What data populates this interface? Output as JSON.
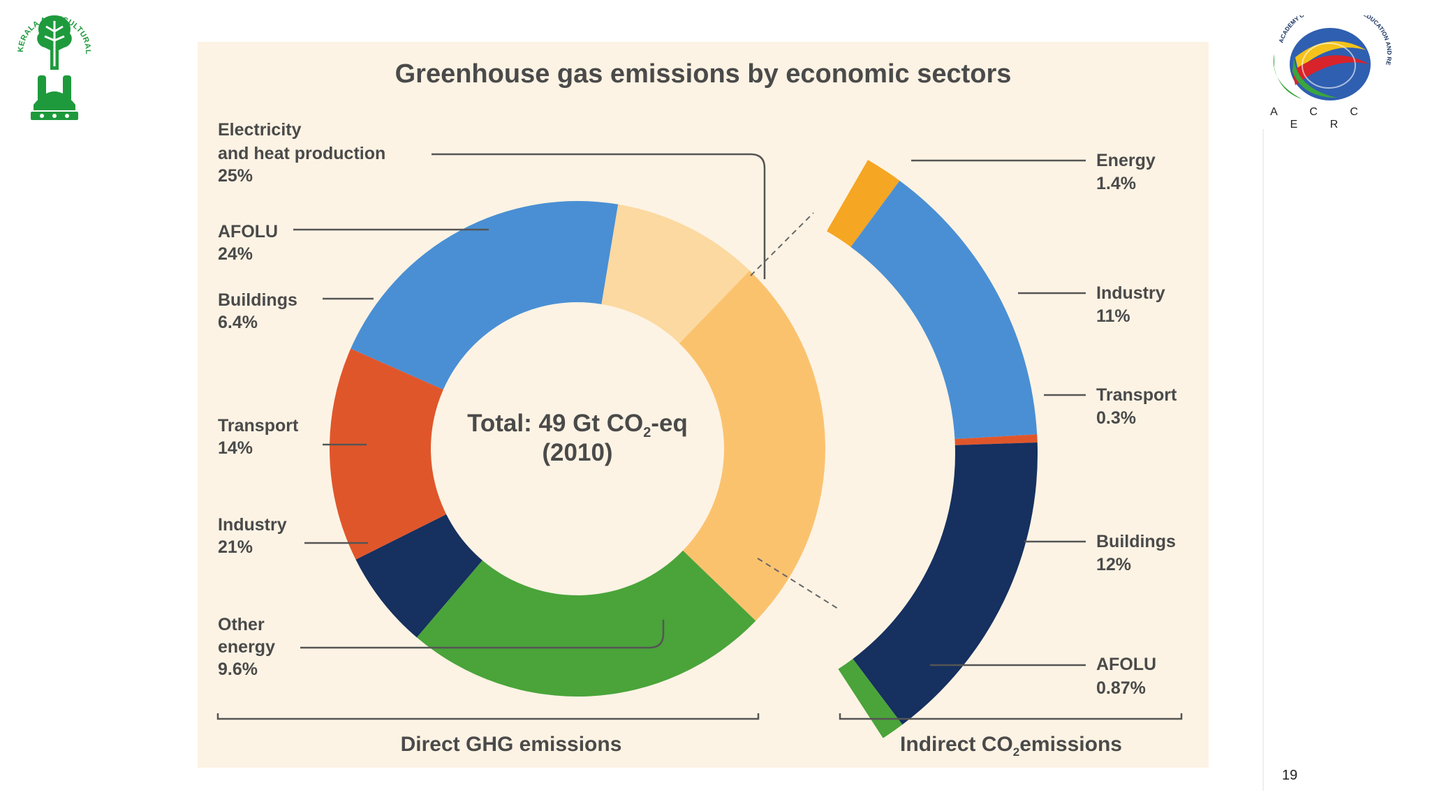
{
  "slide": {
    "page_number": "19",
    "left_logo": {
      "name": "Kerala Agricultural University emblem",
      "ring_text": "KERALA AGRICULTURAL UNIVERSITY",
      "colors": {
        "primary": "#1e9a3c"
      }
    },
    "right_logo": {
      "name": "ACCER globe logo",
      "ring_text": "ACADEMY OF CLIMATE CHANGE EDUCATION AND RESEARCH",
      "caption": "A C C E R",
      "colors": {
        "green": "#3aa63c",
        "blue": "#2f5fb0",
        "red": "#d8232a",
        "yellow": "#f4c21a"
      }
    }
  },
  "chart_data": {
    "type": "pie",
    "variant": "donut with exploded breakdown arc",
    "title": "Greenhouse gas emissions by economic sectors",
    "center_label": {
      "line1": "Total: 49 Gt CO",
      "subscript": "2",
      "line1_suffix": "-eq",
      "line2": "(2010)"
    },
    "direct_emissions": {
      "group_label": "Direct GHG emissions",
      "unit": "%",
      "slices": [
        {
          "name": "Electricity and heat production",
          "label_lines": [
            "Electricity",
            "and heat production"
          ],
          "value": 25,
          "value_label": "25%",
          "color": "#fbc26e"
        },
        {
          "name": "AFOLU",
          "label_lines": [
            "AFOLU"
          ],
          "value": 24,
          "value_label": "24%",
          "color": "#4aa43a"
        },
        {
          "name": "Buildings",
          "label_lines": [
            "Buildings"
          ],
          "value": 6.4,
          "value_label": "6.4%",
          "color": "#16305f"
        },
        {
          "name": "Transport",
          "label_lines": [
            "Transport"
          ],
          "value": 14,
          "value_label": "14%",
          "color": "#e0562b"
        },
        {
          "name": "Industry",
          "label_lines": [
            "Industry"
          ],
          "value": 21,
          "value_label": "21%",
          "color": "#4a8fd4"
        },
        {
          "name": "Other energy",
          "label_lines": [
            "Other",
            "energy"
          ],
          "value": 9.6,
          "value_label": "9.6%",
          "color": "#fcd9a0"
        }
      ]
    },
    "indirect_emissions": {
      "group_label": "Indirect CO",
      "group_label_subscript": "2",
      "group_label_suffix": "emissions",
      "breakdown_of": "Electricity and heat production",
      "unit": "%",
      "segments": [
        {
          "name": "Energy",
          "value": 1.4,
          "value_label": "1.4%",
          "color": "#f5a623"
        },
        {
          "name": "Industry",
          "value": 11,
          "value_label": "11%",
          "color": "#4a8fd4"
        },
        {
          "name": "Transport",
          "value": 0.3,
          "value_label": "0.3%",
          "color": "#e0562b"
        },
        {
          "name": "Buildings",
          "value": 12,
          "value_label": "12%",
          "color": "#16305f"
        },
        {
          "name": "AFOLU",
          "value": 0.87,
          "value_label": "0.87%",
          "color": "#4aa43a"
        }
      ]
    },
    "colors": {
      "panel_background": "#fdf3e4",
      "leader_lines": "#555555",
      "text": "#4a4a4a"
    }
  }
}
